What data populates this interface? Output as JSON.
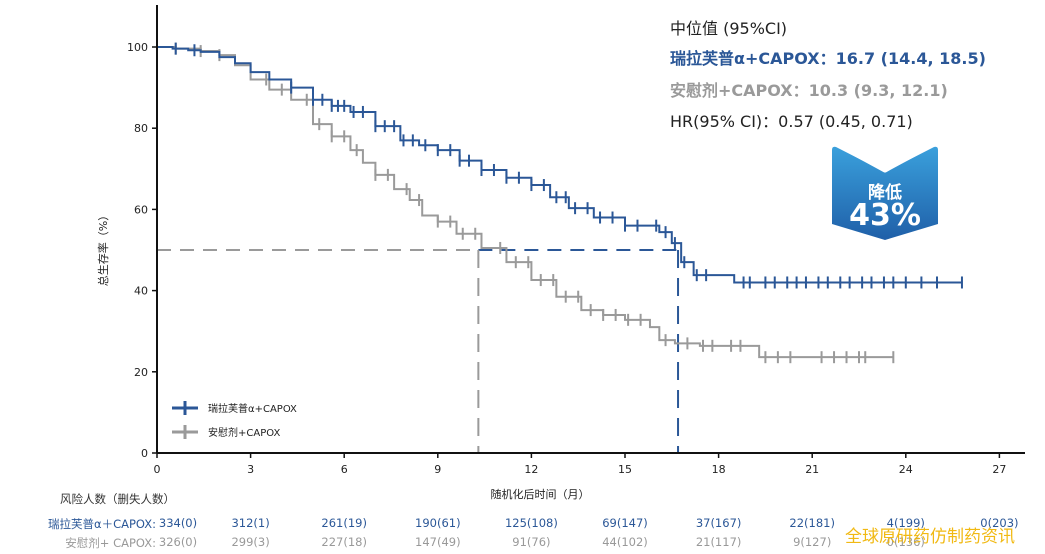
{
  "chart_data": {
    "type": "line",
    "subtype": "kaplan-meier",
    "title": "",
    "xlabel": "随机化后时间（月）",
    "ylabel": "总生存率（%）",
    "xlim": [
      0,
      28
    ],
    "ylim": [
      0,
      110
    ],
    "xticks": [
      0,
      3,
      6,
      9,
      12,
      15,
      18,
      21,
      24,
      27
    ],
    "yticks": [
      0,
      20,
      40,
      60,
      80,
      100
    ],
    "grid": false,
    "legend_position": "bottom-left",
    "median_reference": {
      "y": 50,
      "x_values": [
        10.3,
        16.7
      ]
    },
    "series": [
      {
        "name": "瑞拉芙普α+CAPOX",
        "color": "#2b5797",
        "points": [
          [
            0,
            100
          ],
          [
            0.5,
            99.6
          ],
          [
            1.0,
            99.2
          ],
          [
            1.4,
            98.8
          ],
          [
            2.0,
            97.5
          ],
          [
            2.5,
            96
          ],
          [
            3,
            93.8
          ],
          [
            3.6,
            92
          ],
          [
            4.3,
            90
          ],
          [
            5,
            87
          ],
          [
            5.6,
            85.5
          ],
          [
            6.2,
            84
          ],
          [
            7,
            80.5
          ],
          [
            7.8,
            77
          ],
          [
            8.4,
            75.8
          ],
          [
            9,
            74.6
          ],
          [
            9.7,
            72
          ],
          [
            10.4,
            69.7
          ],
          [
            11.2,
            67.8
          ],
          [
            12,
            66
          ],
          [
            12.6,
            63
          ],
          [
            13.2,
            60.3
          ],
          [
            14,
            58
          ],
          [
            15,
            56
          ],
          [
            16.1,
            54.4
          ],
          [
            16.5,
            51.7
          ],
          [
            16.8,
            47
          ],
          [
            17.2,
            43.8
          ],
          [
            17.8,
            43.8
          ],
          [
            18.5,
            42
          ],
          [
            25.8,
            42
          ]
        ],
        "censor_x": [
          0.6,
          1.2,
          4.3,
          5.0,
          5.3,
          5.6,
          5.8,
          6.0,
          6.3,
          6.6,
          7.0,
          7.3,
          7.6,
          7.9,
          8.2,
          8.6,
          9.0,
          9.4,
          9.7,
          10.0,
          10.4,
          10.8,
          11.2,
          11.6,
          12.0,
          12.4,
          12.8,
          13.1,
          13.4,
          13.8,
          14.2,
          14.6,
          15.0,
          15.4,
          16.0,
          16.3,
          16.6,
          16.9,
          17.3,
          17.6,
          18.8,
          19.0,
          19.5,
          19.8,
          20.2,
          20.5,
          20.8,
          21.2,
          21.5,
          21.9,
          22.2,
          22.6,
          22.9,
          23.3,
          23.6,
          24.0,
          24.5,
          25.0,
          25.8
        ]
      },
      {
        "name": "安慰剂+CAPOX",
        "color": "#9a9a9a",
        "points": [
          [
            0,
            100
          ],
          [
            0.6,
            99.6
          ],
          [
            1.4,
            99
          ],
          [
            2,
            98
          ],
          [
            2.5,
            95.5
          ],
          [
            3,
            92
          ],
          [
            3.6,
            89.5
          ],
          [
            4.3,
            87
          ],
          [
            5,
            81
          ],
          [
            5.6,
            78
          ],
          [
            6.2,
            74.6
          ],
          [
            6.6,
            71.5
          ],
          [
            7,
            68.5
          ],
          [
            7.6,
            65
          ],
          [
            8.1,
            62.3
          ],
          [
            8.5,
            58.5
          ],
          [
            9,
            57
          ],
          [
            9.6,
            54
          ],
          [
            10.4,
            50.5
          ],
          [
            11.2,
            47
          ],
          [
            12,
            42.6
          ],
          [
            12.8,
            38.5
          ],
          [
            13.6,
            35.2
          ],
          [
            14.3,
            34
          ],
          [
            15,
            32.8
          ],
          [
            15.8,
            31
          ],
          [
            16.1,
            27.8
          ],
          [
            16.6,
            27
          ],
          [
            17.4,
            26.4
          ],
          [
            19.3,
            26.4
          ],
          [
            19.3,
            23.6
          ],
          [
            23.6,
            23.6
          ]
        ],
        "censor_x": [
          0.6,
          1.4,
          2.0,
          3.5,
          4.0,
          4.8,
          5.2,
          5.6,
          6.0,
          6.4,
          7.0,
          7.4,
          8.0,
          8.4,
          9.0,
          9.4,
          9.8,
          10.2,
          11.0,
          11.5,
          11.9,
          12.3,
          12.7,
          13.1,
          13.5,
          13.9,
          14.3,
          14.7,
          15.1,
          15.5,
          16.3,
          17.0,
          17.5,
          17.8,
          18.4,
          18.7,
          19.5,
          19.9,
          20.3,
          21.3,
          21.7,
          22.1,
          22.5,
          22.7,
          23.6
        ]
      }
    ]
  },
  "annotation": {
    "title": "中位值 (95%CI)",
    "arm_a": "瑞拉芙普α+CAPOX：16.7 (14.4, 18.5)",
    "arm_b": "安慰剂+CAPOX：10.3 (9.3, 12.1)",
    "hr": "HR(95% CI)：0.57 (0.45, 0.71)"
  },
  "badge": {
    "line1": "降低",
    "line2": "43%",
    "color_top": "#3aa0dc",
    "color_bottom": "#1f5fa8"
  },
  "risk_table": {
    "header": "风险人数（删失人数）",
    "times": [
      0,
      3,
      6,
      9,
      12,
      15,
      18,
      21,
      24,
      27
    ],
    "rows": [
      {
        "label": "瑞拉芙普α＋CAPOX:",
        "values": [
          "334(0)",
          "312(1)",
          "261(19)",
          "190(61)",
          "125(108)",
          "69(147)",
          "37(167)",
          "22(181)",
          "4(199)",
          "0(203)"
        ]
      },
      {
        "label": "安慰剂+ CAPOX:",
        "values": [
          "326(0)",
          "299(3)",
          "227(18)",
          "147(49)",
          "91(76)",
          "44(102)",
          "21(117)",
          "9(127)",
          "0(136)",
          ""
        ]
      }
    ]
  },
  "watermark": "全球原研药仿制药资讯"
}
